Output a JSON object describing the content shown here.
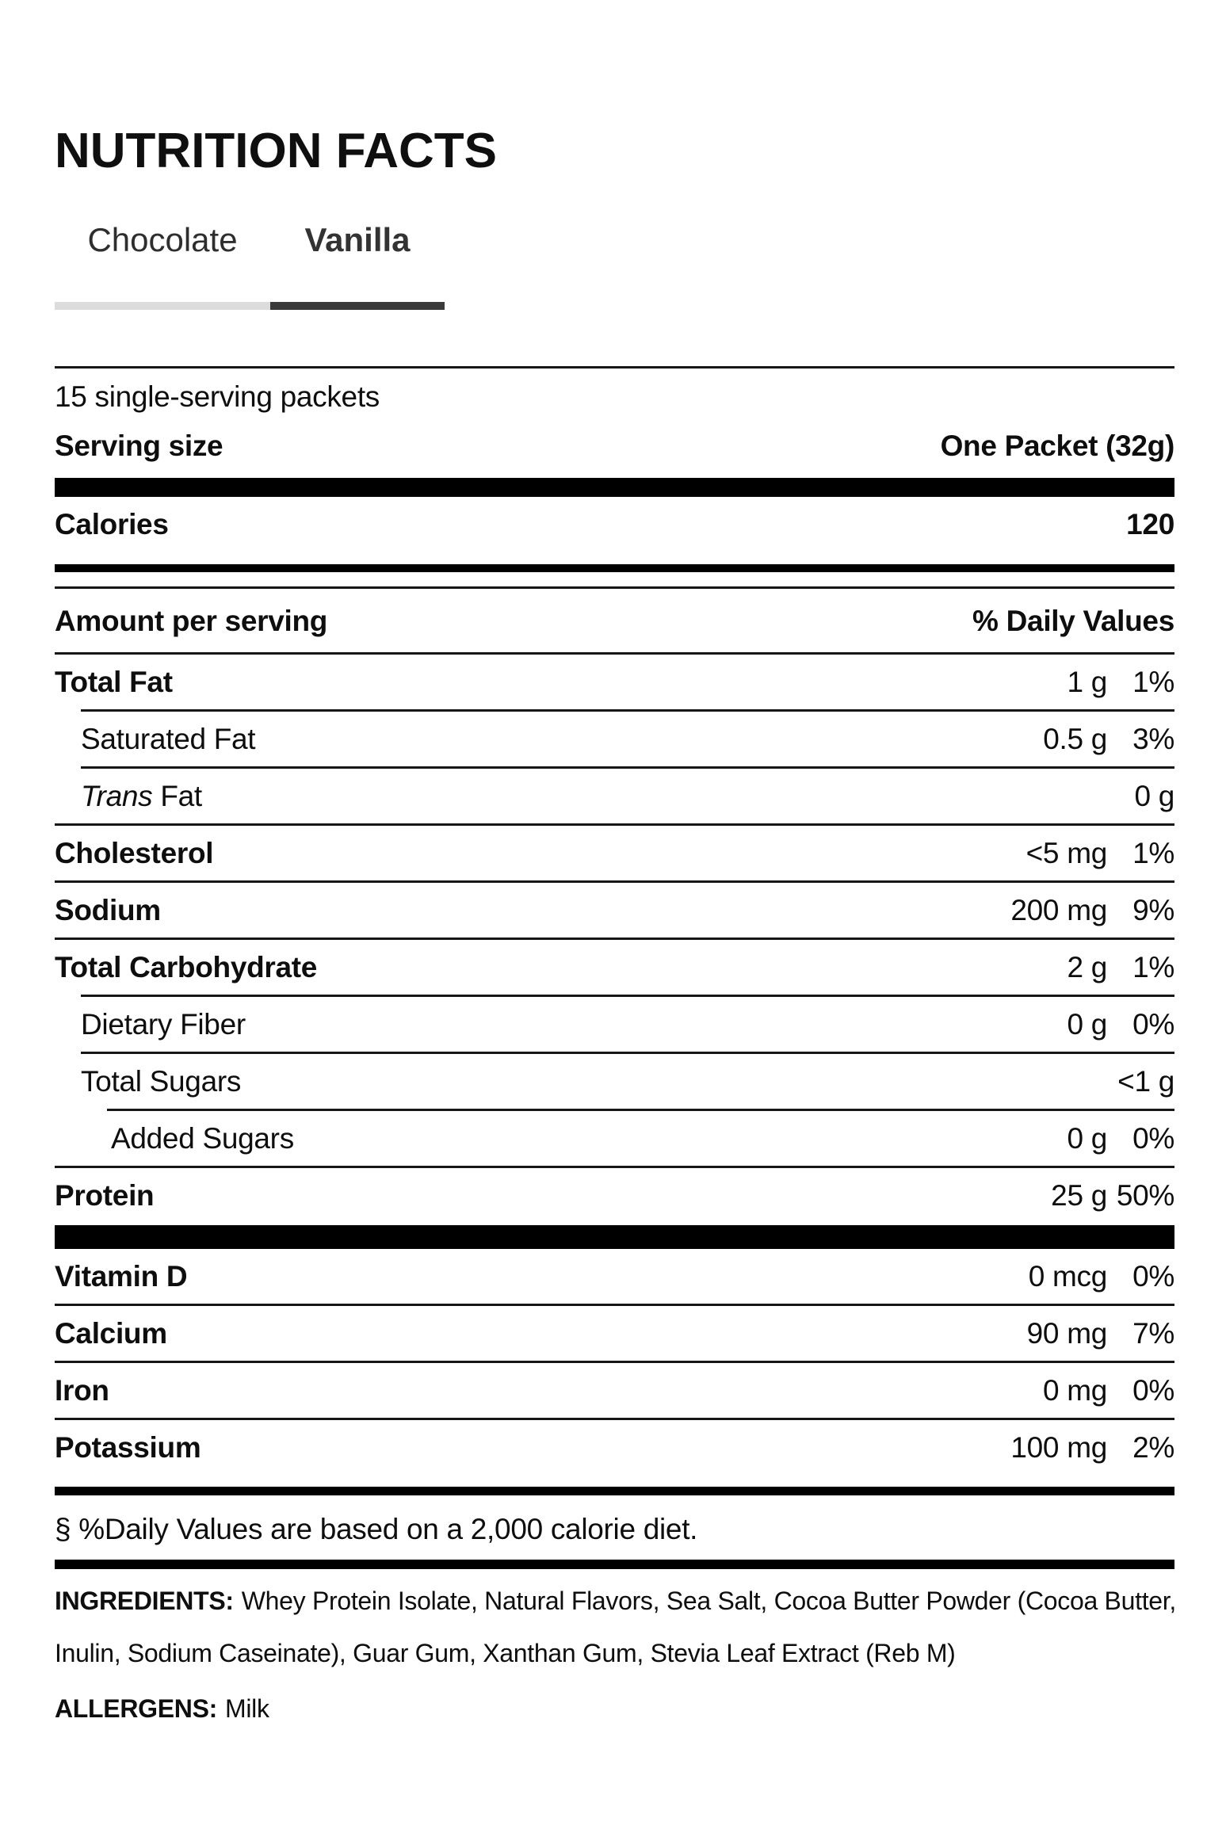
{
  "header": {
    "title": "NUTRITION FACTS"
  },
  "tabs": [
    {
      "label": "Chocolate",
      "active": false
    },
    {
      "label": "Vanilla",
      "active": true
    }
  ],
  "colors": {
    "tab_indicator_inactive": "#dcdcdc",
    "tab_indicator_active": "#3a3a3a",
    "divider": "#161616",
    "bar": "#000000",
    "text": "#0e0e0e"
  },
  "nutrition": {
    "servings_per_container": "15 single-serving packets",
    "serving_size": {
      "label": "Serving size",
      "value": "One Packet (32g)"
    },
    "calories": {
      "label": "Calories",
      "value": "120"
    },
    "column_headers": {
      "left": "Amount per serving",
      "right": "% Daily Values"
    },
    "rows": [
      {
        "name": "Total Fat",
        "amount": "1 g",
        "dv": "1%"
      },
      {
        "name": "Saturated Fat",
        "amount": "0.5 g",
        "dv": "3%"
      },
      {
        "name_italic": "Trans",
        "name_rest": " Fat",
        "amount": "0 g",
        "dv": null
      },
      {
        "name": "Cholesterol",
        "amount": "<5 mg",
        "dv": "1%"
      },
      {
        "name": "Sodium",
        "amount": "200 mg",
        "dv": "9%"
      },
      {
        "name": "Total Carbohydrate",
        "amount": "2 g",
        "dv": "1%"
      },
      {
        "name": "Dietary Fiber",
        "amount": "0 g",
        "dv": "0%"
      },
      {
        "name": "Total Sugars",
        "amount": "<1 g",
        "dv": null
      },
      {
        "name": "Added Sugars",
        "amount": "0 g",
        "dv": "0%"
      },
      {
        "name": "Protein",
        "amount": "25 g",
        "dv": "50%"
      },
      {
        "name": "Vitamin D",
        "amount": "0 mcg",
        "dv": "0%"
      },
      {
        "name": "Calcium",
        "amount": "90 mg",
        "dv": "7%"
      },
      {
        "name": "Iron",
        "amount": "0 mg",
        "dv": "0%"
      },
      {
        "name": "Potassium",
        "amount": "100 mg",
        "dv": "2%"
      }
    ],
    "footnote": "§ %Daily Values are based on a 2,000 calorie diet."
  },
  "ingredients": {
    "label": "INGREDIENTS:",
    "line1": "Whey Protein Isolate, Natural Flavors, Sea Salt, Cocoa Butter Powder (Cocoa Butter,",
    "line2": "Inulin, Sodium Caseinate), Guar Gum, Xanthan Gum, Stevia Leaf Extract (Reb M)"
  },
  "allergens": {
    "label": "ALLERGENS:",
    "value": "Milk"
  }
}
